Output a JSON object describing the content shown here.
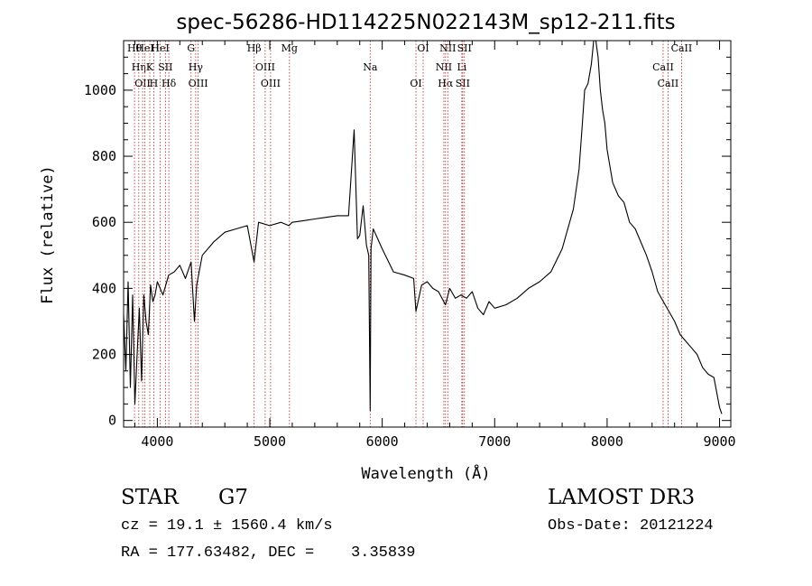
{
  "chart_data": {
    "type": "line",
    "title": "spec-56286-HD114225N022143M_sp12-211.fits",
    "xlabel": "Wavelength (Å)",
    "ylabel": "Flux (relative)",
    "xlim": [
      3700,
      9100
    ],
    "ylim": [
      -20,
      1150
    ],
    "xticks": [
      4000,
      5000,
      6000,
      7000,
      8000,
      9000
    ],
    "yticks": [
      0,
      200,
      400,
      600,
      800,
      1000
    ],
    "grid": false,
    "series": [
      {
        "x": [
          3700,
          3720,
          3740,
          3760,
          3780,
          3800,
          3820,
          3840,
          3860,
          3880,
          3900,
          3920,
          3940,
          3960,
          3980,
          4000,
          4050,
          4100,
          4150,
          4200,
          4250,
          4300,
          4330,
          4350,
          4400,
          4500,
          4600,
          4700,
          4800,
          4860,
          4900,
          5000,
          5100,
          5170,
          5200,
          5300,
          5400,
          5500,
          5600,
          5700,
          5750,
          5780,
          5800,
          5830,
          5860,
          5880,
          5893,
          5900,
          5920,
          6000,
          6100,
          6200,
          6280,
          6300,
          6350,
          6400,
          6450,
          6500,
          6563,
          6600,
          6650,
          6700,
          6750,
          6800,
          6850,
          6900,
          6950,
          7000,
          7100,
          7200,
          7300,
          7400,
          7500,
          7600,
          7650,
          7700,
          7750,
          7780,
          7800,
          7830,
          7860,
          7880,
          7900,
          7920,
          7940,
          7960,
          7980,
          8000,
          8050,
          8100,
          8150,
          8200,
          8250,
          8300,
          8350,
          8400,
          8450,
          8500,
          8550,
          8600,
          8650,
          8700,
          8750,
          8800,
          8850,
          8900,
          8950,
          9000,
          9020
        ],
        "y": [
          320,
          150,
          420,
          100,
          380,
          50,
          200,
          340,
          120,
          380,
          300,
          260,
          410,
          360,
          380,
          420,
          380,
          440,
          450,
          470,
          430,
          480,
          300,
          410,
          500,
          540,
          570,
          580,
          590,
          480,
          600,
          590,
          600,
          590,
          600,
          605,
          610,
          615,
          620,
          620,
          880,
          550,
          560,
          650,
          530,
          500,
          30,
          520,
          580,
          520,
          450,
          440,
          430,
          330,
          410,
          420,
          400,
          390,
          350,
          400,
          370,
          380,
          370,
          390,
          340,
          320,
          360,
          340,
          350,
          370,
          400,
          420,
          450,
          520,
          580,
          640,
          760,
          900,
          1000,
          1020,
          1080,
          1180,
          1150,
          1100,
          1000,
          940,
          900,
          820,
          720,
          680,
          660,
          600,
          580,
          540,
          500,
          450,
          390,
          360,
          330,
          300,
          260,
          240,
          220,
          200,
          160,
          140,
          130,
          40,
          20
        ]
      }
    ],
    "lines": [
      {
        "x": 3797,
        "label": "Hθ"
      },
      {
        "x": 3835,
        "label": "Hη"
      },
      {
        "x": 3869,
        "label": "OII"
      },
      {
        "x": 3889,
        "label": "HeI"
      },
      {
        "x": 3933,
        "label": "K"
      },
      {
        "x": 3968,
        "label": "H"
      },
      {
        "x": 4026,
        "label": "HeI"
      },
      {
        "x": 4072,
        "label": "SII"
      },
      {
        "x": 4102,
        "label": "Hδ"
      },
      {
        "x": 4300,
        "label": "G"
      },
      {
        "x": 4341,
        "label": "Hγ"
      },
      {
        "x": 4363,
        "label": "OIII"
      },
      {
        "x": 4861,
        "label": "Hβ"
      },
      {
        "x": 4959,
        "label": "OIII"
      },
      {
        "x": 5007,
        "label": "OIII"
      },
      {
        "x": 5175,
        "label": "Mg"
      },
      {
        "x": 5893,
        "label": "Na"
      },
      {
        "x": 6300,
        "label": "OI"
      },
      {
        "x": 6364,
        "label": "OI"
      },
      {
        "x": 6548,
        "label": "NII"
      },
      {
        "x": 6563,
        "label": "Hα"
      },
      {
        "x": 6583,
        "label": "NII"
      },
      {
        "x": 6708,
        "label": "Li"
      },
      {
        "x": 6716,
        "label": "SII"
      },
      {
        "x": 6731,
        "label": "SII"
      },
      {
        "x": 8498,
        "label": "CaII"
      },
      {
        "x": 8542,
        "label": "CaII"
      },
      {
        "x": 8662,
        "label": "CaII"
      }
    ]
  },
  "info": {
    "class": "STAR",
    "subclass": "G7",
    "survey": "LAMOST DR3",
    "cz": "cz = 19.1 ± 1560.4 km/s",
    "obs_date": "Obs-Date: 20121224",
    "radec": "RA = 177.63482, DEC =    3.35839"
  },
  "colors": {
    "spectrum": "#000000",
    "lines": "#b22222"
  }
}
